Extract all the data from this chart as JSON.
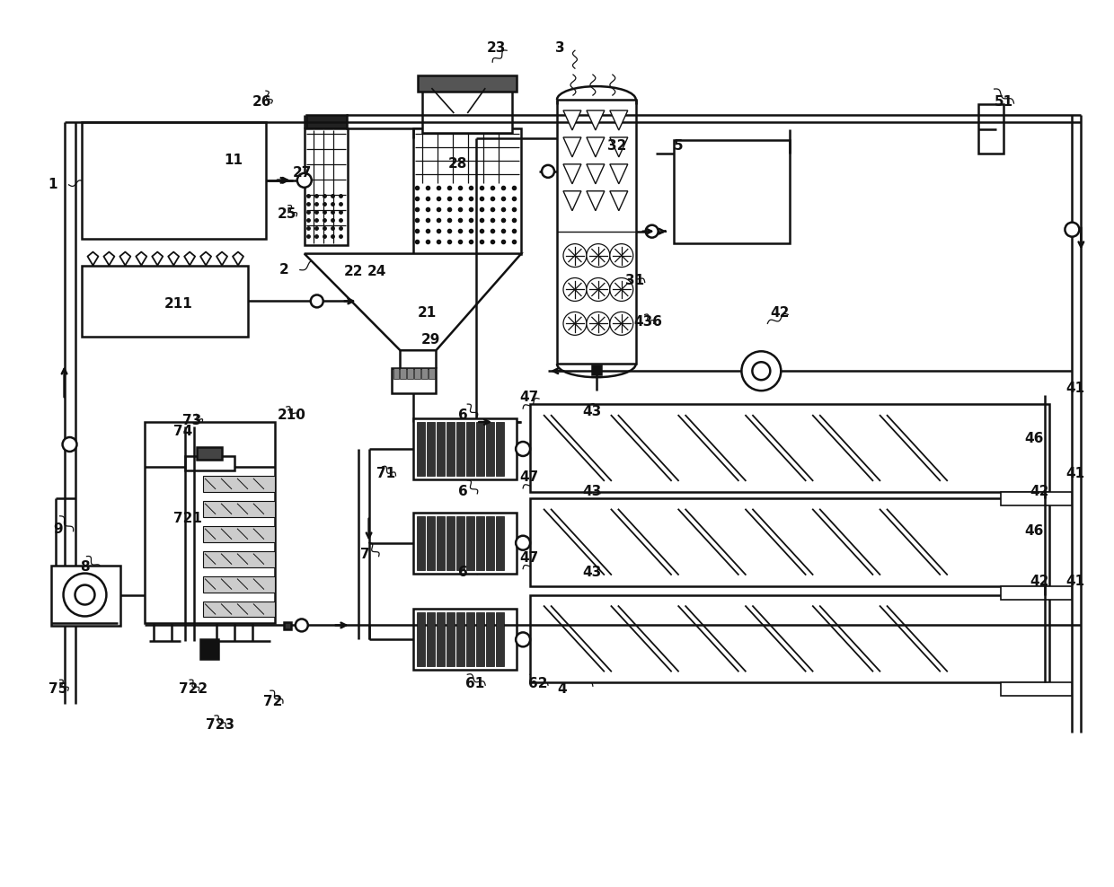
{
  "bg_color": "#ffffff",
  "line_color": "#111111",
  "lw": 1.8,
  "labels": [
    [
      "1",
      52,
      205
    ],
    [
      "2",
      310,
      300
    ],
    [
      "3",
      618,
      52
    ],
    [
      "4",
      620,
      768
    ],
    [
      "5",
      750,
      162
    ],
    [
      "6",
      510,
      462
    ],
    [
      "6",
      510,
      548
    ],
    [
      "6",
      510,
      638
    ],
    [
      "7",
      400,
      618
    ],
    [
      "8",
      88,
      632
    ],
    [
      "9",
      58,
      590
    ],
    [
      "11",
      248,
      178
    ],
    [
      "21",
      464,
      348
    ],
    [
      "22",
      382,
      302
    ],
    [
      "23",
      542,
      52
    ],
    [
      "24",
      408,
      302
    ],
    [
      "25",
      308,
      238
    ],
    [
      "26",
      280,
      112
    ],
    [
      "27",
      325,
      192
    ],
    [
      "28",
      498,
      182
    ],
    [
      "29",
      468,
      378
    ],
    [
      "31",
      696,
      312
    ],
    [
      "32",
      676,
      162
    ],
    [
      "41",
      1188,
      432
    ],
    [
      "41",
      1188,
      528
    ],
    [
      "41",
      1188,
      648
    ],
    [
      "42",
      858,
      348
    ],
    [
      "42",
      1148,
      548
    ],
    [
      "42",
      1148,
      648
    ],
    [
      "43",
      648,
      458
    ],
    [
      "43",
      648,
      548
    ],
    [
      "43",
      648,
      638
    ],
    [
      "46",
      1142,
      488
    ],
    [
      "46",
      1142,
      592
    ],
    [
      "47",
      578,
      442
    ],
    [
      "47",
      578,
      532
    ],
    [
      "47",
      578,
      622
    ],
    [
      "51",
      1108,
      112
    ],
    [
      "61",
      518,
      762
    ],
    [
      "62",
      588,
      762
    ],
    [
      "71",
      418,
      528
    ],
    [
      "72",
      292,
      782
    ],
    [
      "73",
      202,
      468
    ],
    [
      "74",
      192,
      480
    ],
    [
      "75",
      52,
      768
    ],
    [
      "210",
      308,
      462
    ],
    [
      "211",
      182,
      338
    ],
    [
      "436",
      706,
      358
    ],
    [
      "721",
      192,
      578
    ],
    [
      "722",
      198,
      768
    ],
    [
      "723",
      228,
      808
    ]
  ]
}
